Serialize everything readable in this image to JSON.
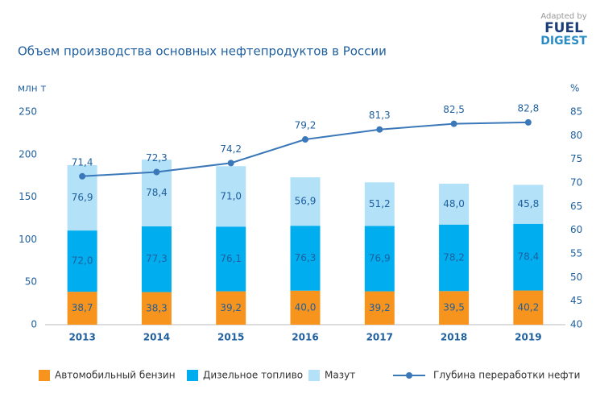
{
  "chart_data": {
    "type": "bar",
    "title": "Объем производства основных нефтепродуктов в России",
    "annotations": [
      "Adapted by",
      "FUEL",
      "DIGEST"
    ],
    "y_label": "млн т",
    "y2_label": "%",
    "categories": [
      "2013",
      "2014",
      "2015",
      "2016",
      "2017",
      "2018",
      "2019"
    ],
    "series": [
      {
        "name": "Автомобильный бензин",
        "color": "#f7941d",
        "values": [
          38.7,
          38.3,
          39.2,
          40.0,
          39.2,
          39.5,
          40.2
        ],
        "value_labels": [
          "38,7",
          "38,3",
          "39,2",
          "40,0",
          "39,2",
          "39,5",
          "40,2"
        ]
      },
      {
        "name": "Дизельное топливо",
        "color": "#00aeef",
        "values": [
          72.0,
          77.3,
          76.1,
          76.3,
          76.9,
          78.2,
          78.4
        ],
        "value_labels": [
          "72,0",
          "77,3",
          "76,1",
          "76,3",
          "76,9",
          "78,2",
          "78,4"
        ]
      },
      {
        "name": "Мазут",
        "color": "#b3e1f8",
        "values": [
          76.9,
          78.4,
          71.0,
          56.9,
          51.2,
          48.0,
          45.8
        ],
        "value_labels": [
          "76,9",
          "78,4",
          "71,0",
          "56,9",
          "51,2",
          "48,0",
          "45,8"
        ]
      },
      {
        "name": "Глубина переработки нефти",
        "type": "line",
        "axis": "y2",
        "color": "#3a78b9",
        "values": [
          71.4,
          72.3,
          74.2,
          79.2,
          81.3,
          82.5,
          82.8
        ],
        "value_labels": [
          "71,4",
          "72,3",
          "74,2",
          "79,2",
          "81,3",
          "82,5",
          "82,8"
        ]
      }
    ],
    "ylim": [
      0,
      250
    ],
    "yticks": [
      0,
      50,
      100,
      150,
      200,
      250
    ],
    "y2lim": [
      40,
      85
    ],
    "y2ticks": [
      40,
      45,
      50,
      55,
      60,
      65,
      70,
      75,
      80,
      85
    ],
    "grid": false,
    "legend": "bottom"
  }
}
